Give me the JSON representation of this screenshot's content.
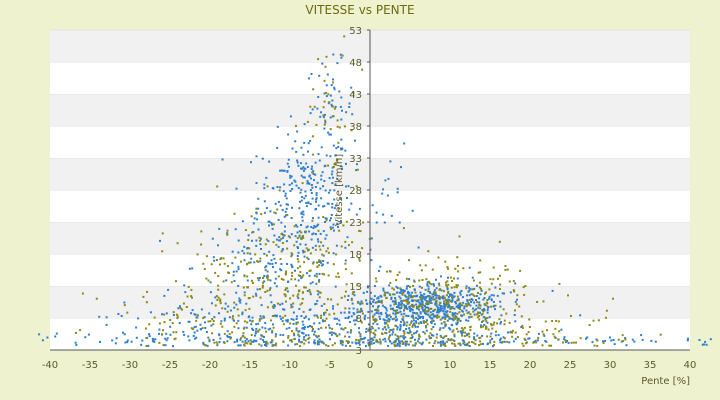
{
  "chart_data": {
    "type": "scatter",
    "title": "VITESSE vs PENTE",
    "xlabel": "Pente [%]",
    "ylabel": "Vitesse [km/h]",
    "xlim": [
      -40,
      40
    ],
    "ylim": [
      3,
      53
    ],
    "x_ticks": [
      -40,
      -35,
      -30,
      -25,
      -20,
      -15,
      -10,
      -5,
      0,
      5,
      10,
      15,
      20,
      25,
      30,
      35,
      40
    ],
    "y_ticks": [
      3,
      8,
      13,
      18,
      23,
      28,
      33,
      38,
      43,
      48,
      53
    ],
    "grid": "alternating horizontal bands",
    "legend": "none",
    "colors": {
      "series_blue": "#2f7fd0",
      "series_olive": "#8a8a14",
      "band": "#f1f1f1",
      "plot_bg": "#ffffff",
      "page_bg": "#eef2cf",
      "axis": "#555555"
    },
    "series": [
      {
        "color": "#2f7fd0",
        "clusters": [
          {
            "x": -8,
            "y": 27,
            "sx": 3,
            "sy": 5,
            "n": 260
          },
          {
            "x": -5,
            "y": 41,
            "sx": 1.5,
            "sy": 3.5,
            "n": 55
          },
          {
            "x": -12,
            "y": 16,
            "sx": 5,
            "sy": 4,
            "n": 160
          },
          {
            "x": -15,
            "y": 7,
            "sx": 9,
            "sy": 2.2,
            "n": 230
          },
          {
            "x": 7,
            "y": 10,
            "sx": 4.5,
            "sy": 1.8,
            "n": 520
          },
          {
            "x": 3,
            "y": 6,
            "sx": 8,
            "sy": 2.5,
            "n": 220
          },
          {
            "x": 2,
            "y": 24,
            "sx": 1.5,
            "sy": 5,
            "n": 22
          },
          {
            "x": 0,
            "y": 4.5,
            "sx": 28,
            "sy": 0.5,
            "n": 190
          }
        ]
      },
      {
        "color": "#8a8a14",
        "clusters": [
          {
            "x": -5,
            "y": 40,
            "sx": 1.6,
            "sy": 5,
            "n": 45
          },
          {
            "x": -10,
            "y": 16,
            "sx": 6,
            "sy": 5,
            "n": 230
          },
          {
            "x": -20,
            "y": 11,
            "sx": 6,
            "sy": 4,
            "n": 80
          },
          {
            "x": 9,
            "y": 10,
            "sx": 6,
            "sy": 3,
            "n": 300
          },
          {
            "x": -5,
            "y": 5,
            "sx": 14,
            "sy": 1.5,
            "n": 150
          },
          {
            "x": 15,
            "y": 5.5,
            "sx": 10,
            "sy": 1.5,
            "n": 100
          }
        ]
      }
    ]
  }
}
